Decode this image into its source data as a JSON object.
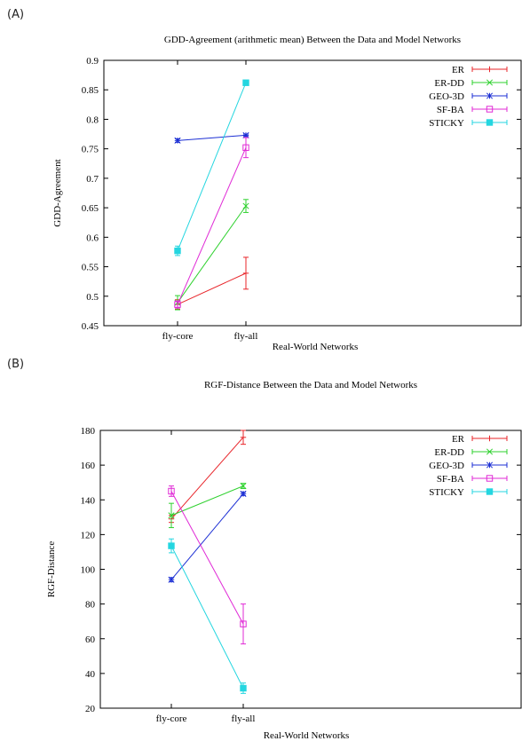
{
  "chart_data": [
    {
      "panel_label": "(A)",
      "type": "line",
      "title": "GDD-Agreement (arithmetic mean) Between the Data and Model Networks",
      "xlabel": "Real-World Networks",
      "ylabel": "GDD-Agreement",
      "categories": [
        "fly-core",
        "fly-all"
      ],
      "ylim": [
        0.45,
        0.9
      ],
      "yticks": [
        "0.45",
        "0.5",
        "0.55",
        "0.6",
        "0.65",
        "0.7",
        "0.75",
        "0.8",
        "0.85",
        "0.9"
      ],
      "grid": false,
      "legend_position": "top-right",
      "series": [
        {
          "name": "ER",
          "color": "#e8252a",
          "marker": "plus",
          "values": [
            0.486,
            0.539
          ],
          "errors": [
            0.008,
            0.027
          ]
        },
        {
          "name": "ER-DD",
          "color": "#2fd12f",
          "marker": "x",
          "values": [
            0.489,
            0.653
          ],
          "errors": [
            0.012,
            0.011
          ]
        },
        {
          "name": "GEO-3D",
          "color": "#1c2fd4",
          "marker": "star",
          "values": [
            0.764,
            0.773
          ],
          "errors": [
            0.003,
            0.002
          ]
        },
        {
          "name": "SF-BA",
          "color": "#e02ad6",
          "marker": "open-square",
          "values": [
            0.486,
            0.752
          ],
          "errors": [
            0.006,
            0.017
          ]
        },
        {
          "name": "STICKY",
          "color": "#24d6e0",
          "marker": "filled-square",
          "values": [
            0.577,
            0.862
          ],
          "errors": [
            0.008,
            0.002
          ]
        }
      ]
    },
    {
      "panel_label": "(B)",
      "type": "line",
      "title": "RGF-Distance Between the Data and Model Networks",
      "xlabel": "Real-World Networks",
      "ylabel": "RGF-Distance",
      "categories": [
        "fly-core",
        "fly-all"
      ],
      "ylim": [
        20,
        180
      ],
      "yticks": [
        "20",
        "40",
        "60",
        "80",
        "100",
        "120",
        "140",
        "160",
        "180"
      ],
      "grid": false,
      "legend_position": "top-right",
      "series": [
        {
          "name": "ER",
          "color": "#e8252a",
          "marker": "plus",
          "values": [
            129,
            176
          ],
          "errors": [
            2,
            4
          ]
        },
        {
          "name": "ER-DD",
          "color": "#2fd12f",
          "marker": "x",
          "values": [
            131,
            148
          ],
          "errors": [
            7,
            1.5
          ]
        },
        {
          "name": "GEO-3D",
          "color": "#1c2fd4",
          "marker": "star",
          "values": [
            94,
            143.5
          ],
          "errors": [
            1.2,
            1
          ]
        },
        {
          "name": "SF-BA",
          "color": "#e02ad6",
          "marker": "open-square",
          "values": [
            145,
            68.5
          ],
          "errors": [
            3,
            11.5
          ]
        },
        {
          "name": "STICKY",
          "color": "#24d6e0",
          "marker": "filled-square",
          "values": [
            113.5,
            31.5
          ],
          "errors": [
            4,
            3
          ]
        }
      ]
    }
  ]
}
